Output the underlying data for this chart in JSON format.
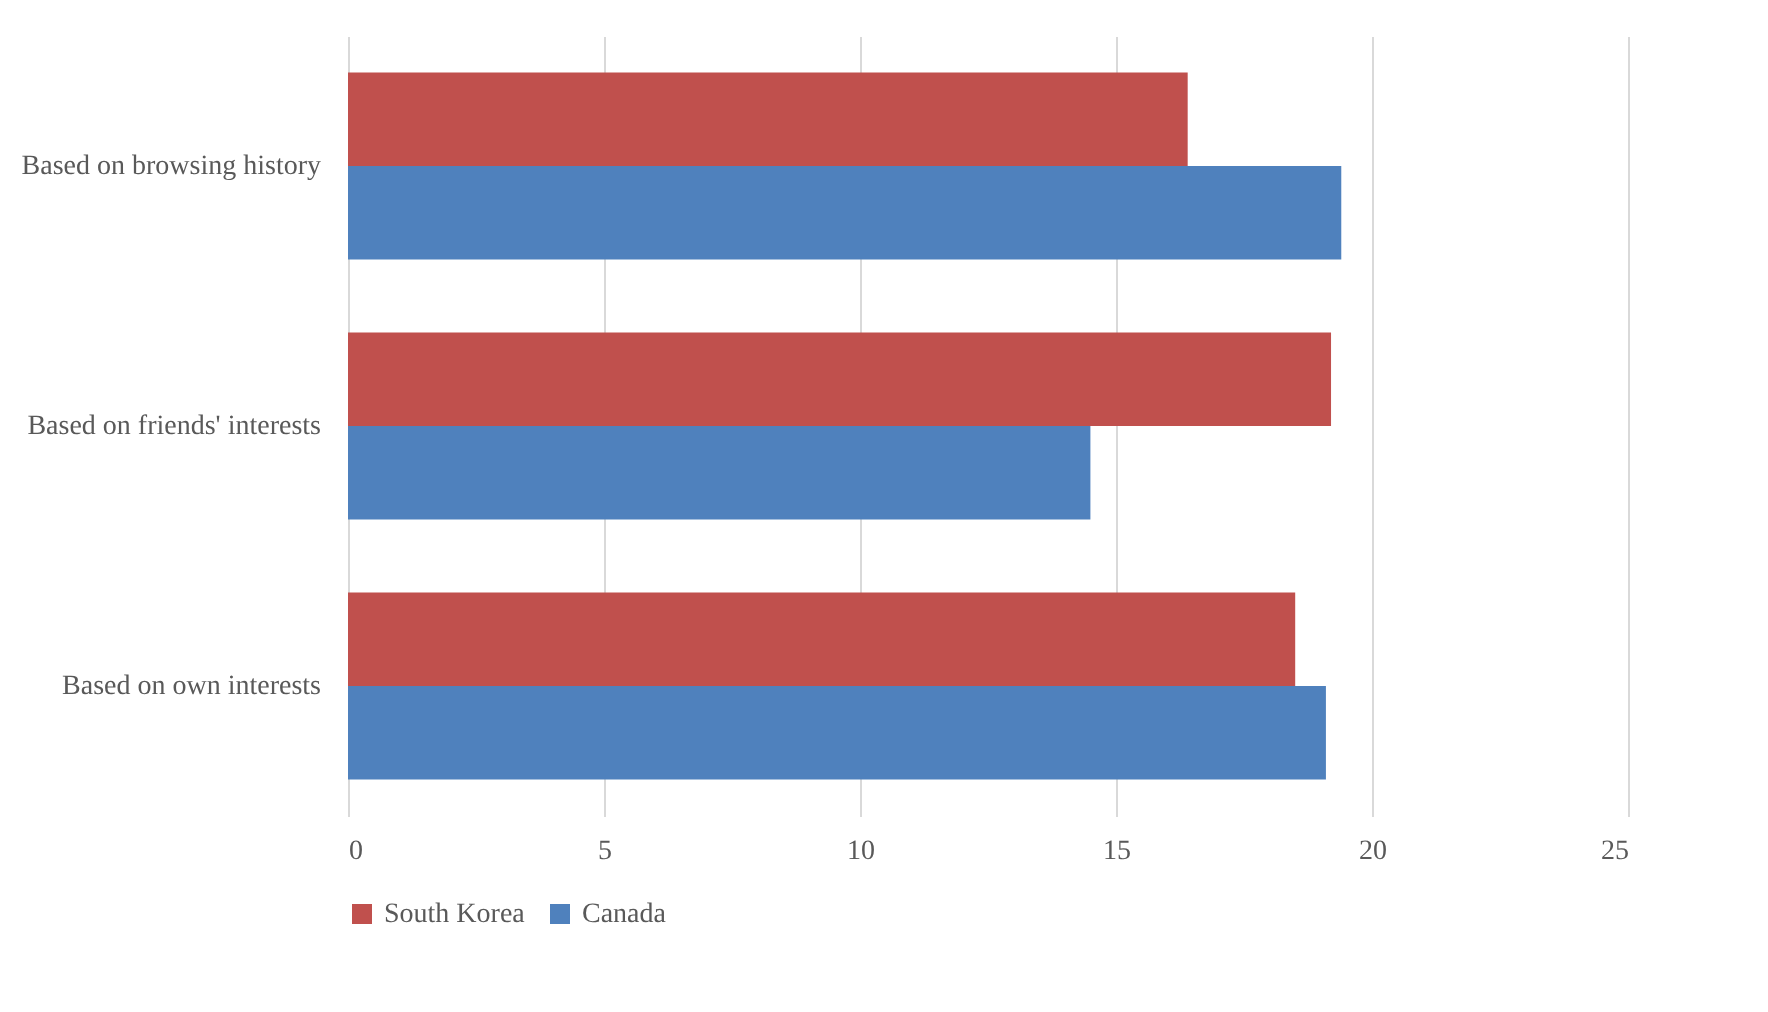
{
  "chart_data": {
    "type": "bar",
    "orientation": "horizontal",
    "categories": [
      "Based on browsing history",
      "Based on friends' interests",
      "Based on own interests"
    ],
    "series": [
      {
        "name": "South Korea",
        "color": "#c0504d",
        "values": [
          16.4,
          19.2,
          18.5
        ]
      },
      {
        "name": "Canada",
        "color": "#4f81bd",
        "values": [
          19.4,
          14.5,
          19.1
        ]
      }
    ],
    "xlim": [
      0,
      25
    ],
    "xticks": [
      0,
      5,
      10,
      15,
      20,
      25
    ],
    "grid": "x",
    "legend": "bottom"
  }
}
